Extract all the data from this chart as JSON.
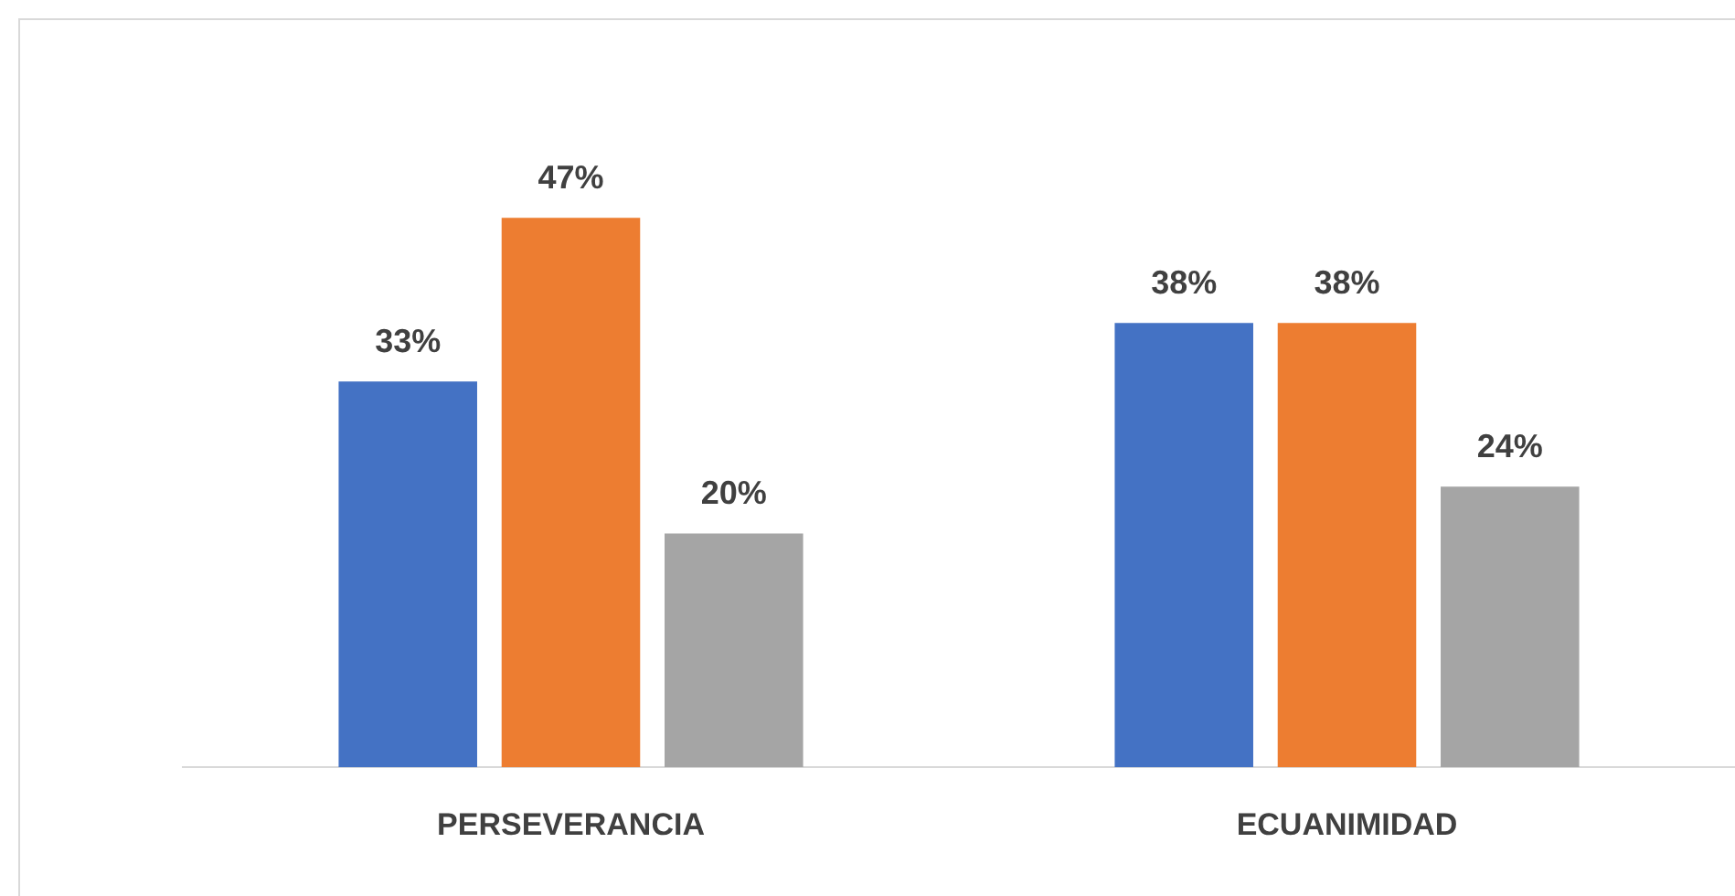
{
  "chart_data": {
    "type": "bar",
    "categories": [
      "PERSEVERANCIA",
      "ECUANIMIDAD"
    ],
    "series": [
      {
        "color": "#4472c4",
        "values": [
          33,
          38
        ],
        "value_labels": [
          "33%",
          "38%"
        ]
      },
      {
        "color": "#ed7d31",
        "values": [
          47,
          38
        ],
        "value_labels": [
          "47%",
          "38%"
        ]
      },
      {
        "color": "#a5a5a5",
        "values": [
          20,
          24
        ],
        "value_labels": [
          "20%",
          "24%"
        ]
      }
    ],
    "grid": false,
    "legend": false
  }
}
